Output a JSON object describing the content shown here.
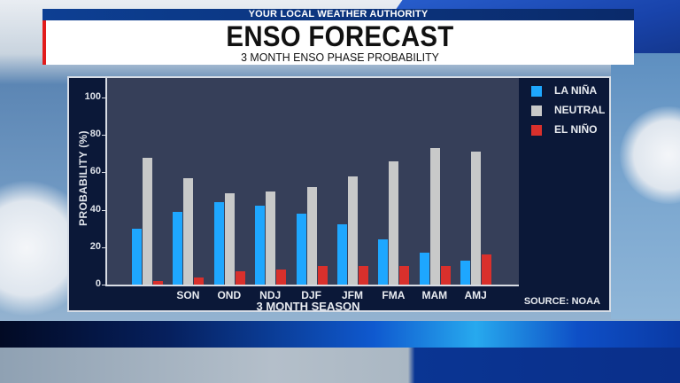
{
  "header": {
    "tagline": "YOUR LOCAL WEATHER AUTHORITY",
    "title": "ENSO FORECAST",
    "subtitle": "3 MONTH ENSO PHASE PROBABILITY"
  },
  "colors": {
    "la_nina": "#1ea7ff",
    "neutral": "#c8c9c9",
    "el_nino": "#d9302c",
    "plot_bg": "#363f59",
    "panel_bg": "#0b1838",
    "accent_red": "#e21b1b"
  },
  "chart_data": {
    "type": "bar",
    "title": "ENSO FORECAST",
    "subtitle": "3 MONTH ENSO PHASE PROBABILITY",
    "xlabel": "3 MONTH SEASON",
    "ylabel": "PROBABILITY (%)",
    "ylim": [
      0,
      110
    ],
    "yticks": [
      0,
      20,
      40,
      60,
      80,
      100
    ],
    "grid": false,
    "legend_position": "right",
    "categories": [
      "",
      "SON",
      "OND",
      "NDJ",
      "DJF",
      "JFM",
      "FMA",
      "MAM",
      "AMJ"
    ],
    "series": [
      {
        "name": "LA NIÑA",
        "color": "#1ea7ff",
        "values": [
          30,
          39,
          44,
          42,
          38,
          32,
          24,
          17,
          13
        ]
      },
      {
        "name": "NEUTRAL",
        "color": "#c8c9c9",
        "values": [
          68,
          57,
          49,
          50,
          52,
          58,
          66,
          73,
          71
        ]
      },
      {
        "name": "EL NIÑO",
        "color": "#d9302c",
        "values": [
          2,
          4,
          7,
          8,
          10,
          10,
          10,
          10,
          16
        ]
      }
    ],
    "source": "SOURCE: NOAA"
  }
}
